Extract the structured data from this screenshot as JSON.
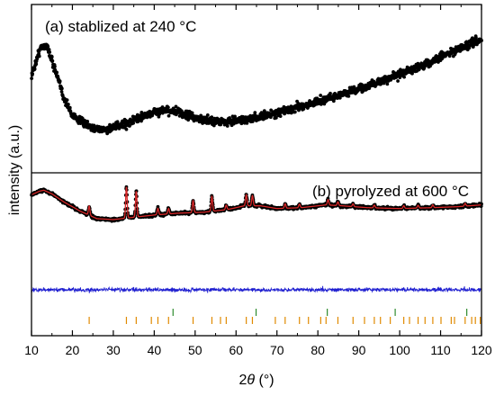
{
  "chart_data": {
    "type": "scatter",
    "xlabel_prefix": "2",
    "xlabel_symbol": "θ",
    "xlabel_unit": " (°)",
    "ylabel": "intensity (a.u.)",
    "xlim": [
      10,
      120
    ],
    "xticks": [
      10,
      20,
      30,
      40,
      50,
      60,
      70,
      80,
      90,
      100,
      110,
      120
    ],
    "ylim": [
      0,
      1
    ],
    "colors": {
      "points": "#000000",
      "fit": "#d62728",
      "difference": "#1f1fd0",
      "phase1": "#2e8b2e",
      "phase2": "#e08a00"
    },
    "panels": [
      {
        "label": "(a) stablized at 240 °C",
        "profile": [
          [
            10,
            0.58
          ],
          [
            12,
            0.74
          ],
          [
            13,
            0.77
          ],
          [
            14,
            0.75
          ],
          [
            16,
            0.6
          ],
          [
            18,
            0.44
          ],
          [
            20,
            0.34
          ],
          [
            24,
            0.27
          ],
          [
            28,
            0.25
          ],
          [
            32,
            0.28
          ],
          [
            36,
            0.32
          ],
          [
            40,
            0.36
          ],
          [
            44,
            0.37
          ],
          [
            48,
            0.34
          ],
          [
            52,
            0.31
          ],
          [
            58,
            0.3
          ],
          [
            66,
            0.33
          ],
          [
            74,
            0.38
          ],
          [
            82,
            0.44
          ],
          [
            90,
            0.5
          ],
          [
            98,
            0.57
          ],
          [
            106,
            0.65
          ],
          [
            114,
            0.74
          ],
          [
            120,
            0.8
          ]
        ],
        "noise": 0.05
      },
      {
        "label": "(b) pyrolyzed at 600 °C",
        "profile": [
          [
            10,
            0.78
          ],
          [
            12,
            0.82
          ],
          [
            13,
            0.83
          ],
          [
            15,
            0.79
          ],
          [
            18,
            0.7
          ],
          [
            22,
            0.6
          ],
          [
            26,
            0.52
          ],
          [
            30,
            0.51
          ],
          [
            34,
            0.53
          ],
          [
            40,
            0.56
          ],
          [
            46,
            0.58
          ],
          [
            52,
            0.59
          ],
          [
            58,
            0.62
          ],
          [
            62,
            0.66
          ],
          [
            66,
            0.66
          ],
          [
            70,
            0.63
          ],
          [
            76,
            0.64
          ],
          [
            82,
            0.67
          ],
          [
            86,
            0.66
          ],
          [
            92,
            0.64
          ],
          [
            100,
            0.63
          ],
          [
            108,
            0.64
          ],
          [
            114,
            0.65
          ],
          [
            120,
            0.67
          ]
        ],
        "peaks": [
          [
            24.1,
            0.1
          ],
          [
            33.2,
            0.34
          ],
          [
            35.6,
            0.28
          ],
          [
            40.9,
            0.07
          ],
          [
            43.5,
            0.06
          ],
          [
            49.5,
            0.13
          ],
          [
            54.1,
            0.16
          ],
          [
            57.6,
            0.05
          ],
          [
            62.5,
            0.12
          ],
          [
            64.0,
            0.11
          ],
          [
            72.0,
            0.05
          ],
          [
            75.5,
            0.04
          ],
          [
            82.5,
            0.06
          ],
          [
            84.9,
            0.04
          ],
          [
            88.6,
            0.03
          ],
          [
            93.8,
            0.03
          ],
          [
            101.0,
            0.03
          ],
          [
            104.5,
            0.03
          ],
          [
            108.1,
            0.03
          ],
          [
            116.0,
            0.03
          ]
        ],
        "noise": 0.03
      }
    ],
    "tick_marks": {
      "phase1": [
        44.6,
        64.9,
        82.3,
        98.9,
        116.4
      ],
      "phase2": [
        24.1,
        33.2,
        35.6,
        39.3,
        40.9,
        43.5,
        49.5,
        54.1,
        56.2,
        57.6,
        62.5,
        64.0,
        69.6,
        72.0,
        75.5,
        77.7,
        80.7,
        82.0,
        84.9,
        88.6,
        91.4,
        93.8,
        95.3,
        97.7,
        101.0,
        102.4,
        104.5,
        106.2,
        108.1,
        110.1,
        112.6,
        113.4,
        116.0,
        117.6,
        118.5,
        119.7
      ]
    },
    "grid": false,
    "legend": "none"
  }
}
